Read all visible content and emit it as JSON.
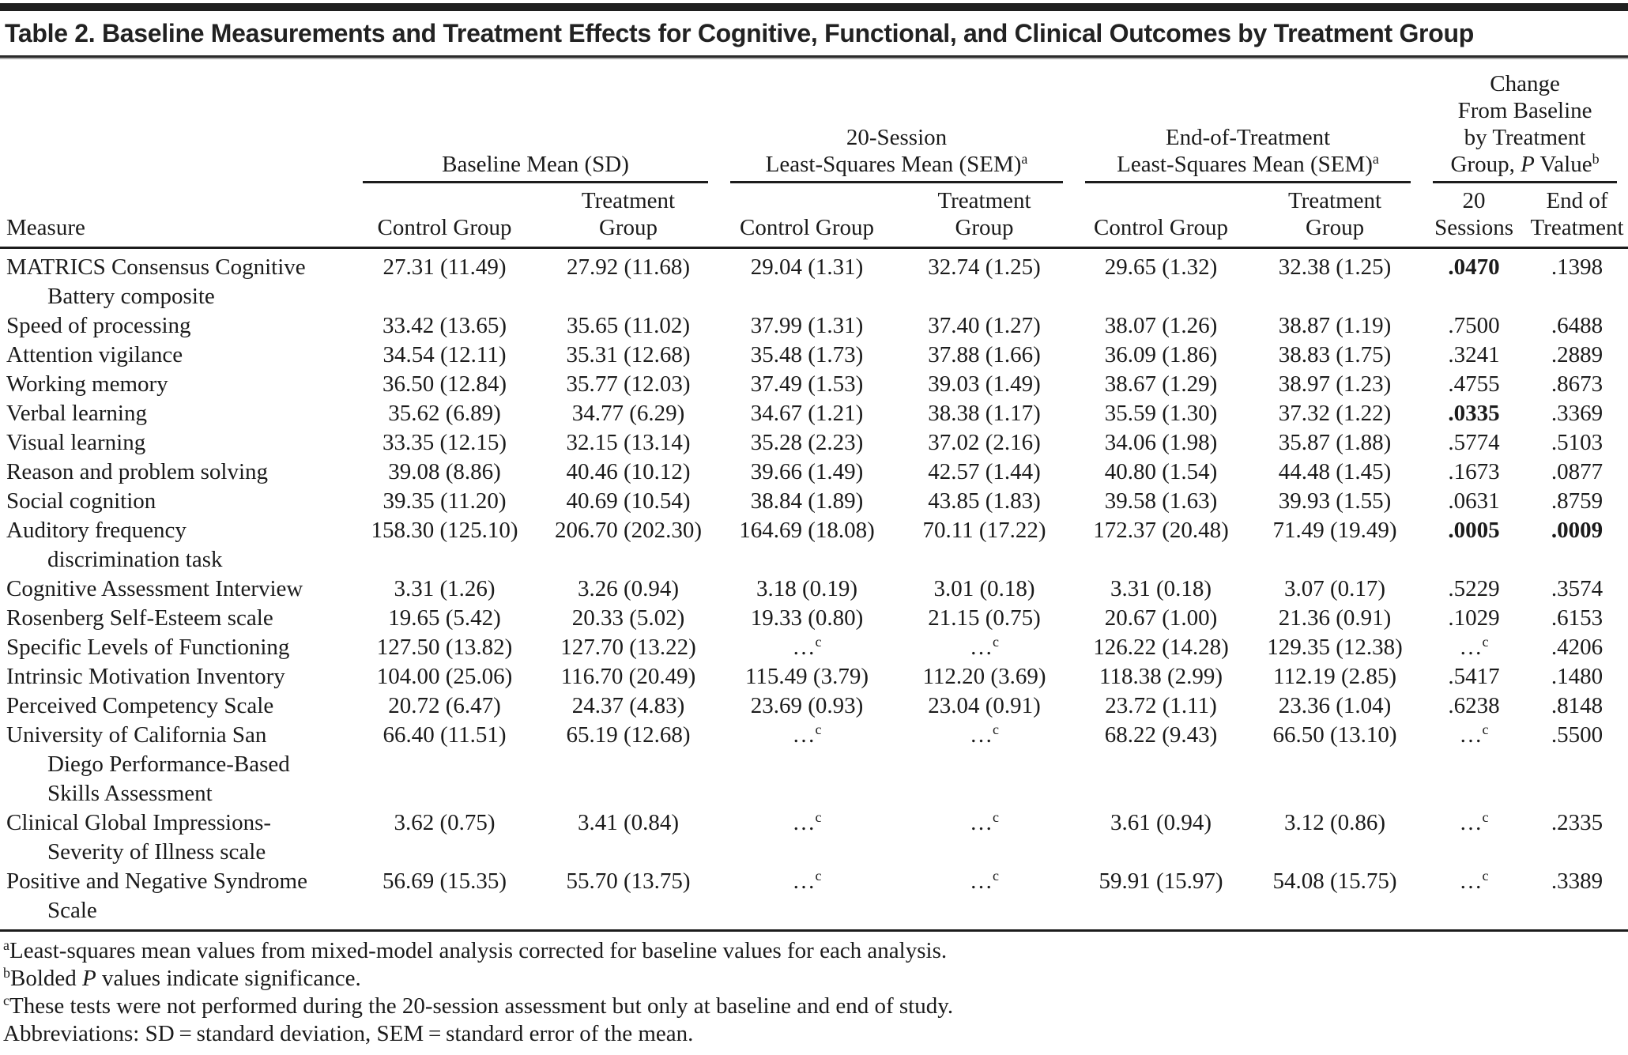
{
  "title": "Table 2. Baseline Measurements and Treatment Effects for Cognitive, Functional, and Clinical Outcomes by Treatment Group",
  "header": {
    "measure_label": "Measure",
    "groups": [
      {
        "label": "Baseline Mean (SD)",
        "sup": ""
      },
      {
        "label": "20-Session\nLeast-Squares Mean (SEM)",
        "sup": "a"
      },
      {
        "label": "End-of-Treatment\nLeast-Squares Mean (SEM)",
        "sup": "a"
      },
      {
        "label": "Change\nFrom Baseline\nby Treatment\nGroup, P Value",
        "sup": "b"
      }
    ],
    "subheaders": [
      "Control Group",
      "Treatment\nGroup",
      "Control Group",
      "Treatment\nGroup",
      "Control Group",
      "Treatment\nGroup",
      "20\nSessions",
      "End of\nTreatment"
    ]
  },
  "rows": [
    {
      "measure": "MATRICS Consensus Cognitive\nBattery composite",
      "values": [
        "27.31 (11.49)",
        "27.92 (11.68)",
        "29.04 (1.31)",
        "32.74 (1.25)",
        "29.65 (1.32)",
        "32.38 (1.25)",
        "**.0470**",
        ".1398"
      ]
    },
    {
      "measure": "Speed of processing",
      "values": [
        "33.42 (13.65)",
        "35.65 (11.02)",
        "37.99 (1.31)",
        "37.40 (1.27)",
        "38.07 (1.26)",
        "38.87 (1.19)",
        ".7500",
        ".6488"
      ]
    },
    {
      "measure": "Attention vigilance",
      "values": [
        "34.54 (12.11)",
        "35.31 (12.68)",
        "35.48 (1.73)",
        "37.88 (1.66)",
        "36.09 (1.86)",
        "38.83 (1.75)",
        ".3241",
        ".2889"
      ]
    },
    {
      "measure": "Working memory",
      "values": [
        "36.50 (12.84)",
        "35.77 (12.03)",
        "37.49 (1.53)",
        "39.03 (1.49)",
        "38.67 (1.29)",
        "38.97 (1.23)",
        ".4755",
        ".8673"
      ]
    },
    {
      "measure": "Verbal learning",
      "values": [
        "35.62 (6.89)",
        "34.77 (6.29)",
        "34.67 (1.21)",
        "38.38 (1.17)",
        "35.59 (1.30)",
        "37.32 (1.22)",
        "**.0335**",
        ".3369"
      ]
    },
    {
      "measure": "Visual learning",
      "values": [
        "33.35 (12.15)",
        "32.15 (13.14)",
        "35.28 (2.23)",
        "37.02 (2.16)",
        "34.06 (1.98)",
        "35.87 (1.88)",
        ".5774",
        ".5103"
      ]
    },
    {
      "measure": "Reason and problem solving",
      "values": [
        "39.08 (8.86)",
        "40.46 (10.12)",
        "39.66 (1.49)",
        "42.57 (1.44)",
        "40.80 (1.54)",
        "44.48 (1.45)",
        ".1673",
        ".0877"
      ]
    },
    {
      "measure": "Social cognition",
      "values": [
        "39.35 (11.20)",
        "40.69 (10.54)",
        "38.84 (1.89)",
        "43.85 (1.83)",
        "39.58 (1.63)",
        "39.93 (1.55)",
        ".0631",
        ".8759"
      ]
    },
    {
      "measure": "Auditory frequency\ndiscrimination task",
      "values": [
        "158.30 (125.10)",
        "206.70 (202.30)",
        "164.69 (18.08)",
        "70.11 (17.22)",
        "172.37 (20.48)",
        "71.49 (19.49)",
        "**.0005**",
        "**.0009**"
      ]
    },
    {
      "measure": "Cognitive Assessment Interview",
      "values": [
        "3.31 (1.26)",
        "3.26 (0.94)",
        "3.18 (0.19)",
        "3.01 (0.18)",
        "3.31 (0.18)",
        "3.07 (0.17)",
        ".5229",
        ".3574"
      ]
    },
    {
      "measure": "Rosenberg Self-Esteem scale",
      "values": [
        "19.65 (5.42)",
        "20.33 (5.02)",
        "19.33 (0.80)",
        "21.15 (0.75)",
        "20.67 (1.00)",
        "21.36 (0.91)",
        ".1029",
        ".6153"
      ]
    },
    {
      "measure": "Specific Levels of Functioning",
      "values": [
        "127.50 (13.82)",
        "127.70 (13.22)",
        "…^c",
        "…^c",
        "126.22 (14.28)",
        "129.35 (12.38)",
        "…^c",
        ".4206"
      ]
    },
    {
      "measure": "Intrinsic Motivation Inventory",
      "values": [
        "104.00 (25.06)",
        "116.70 (20.49)",
        "115.49 (3.79)",
        "112.20 (3.69)",
        "118.38 (2.99)",
        "112.19 (2.85)",
        ".5417",
        ".1480"
      ]
    },
    {
      "measure": "Perceived Competency Scale",
      "values": [
        "20.72 (6.47)",
        "24.37 (4.83)",
        "23.69 (0.93)",
        "23.04 (0.91)",
        "23.72 (1.11)",
        "23.36 (1.04)",
        ".6238",
        ".8148"
      ]
    },
    {
      "measure": "University of California San\nDiego Performance-Based\nSkills Assessment",
      "values": [
        "66.40 (11.51)",
        "65.19 (12.68)",
        "…^c",
        "…^c",
        "68.22 (9.43)",
        "66.50 (13.10)",
        "…^c",
        ".5500"
      ]
    },
    {
      "measure": "Clinical Global Impressions-\nSeverity of Illness scale",
      "values": [
        "3.62 (0.75)",
        "3.41 (0.84)",
        "…^c",
        "…^c",
        "3.61 (0.94)",
        "3.12 (0.86)",
        "…^c",
        ".2335"
      ]
    },
    {
      "measure": "Positive and Negative Syndrome\nScale",
      "values": [
        "56.69 (15.35)",
        "55.70 (13.75)",
        "…^c",
        "…^c",
        "59.91 (15.97)",
        "54.08 (15.75)",
        "…^c",
        ".3389"
      ]
    }
  ],
  "footnotes": [
    {
      "sup": "a",
      "text": "Least-squares mean values from mixed-model analysis corrected for baseline values for each analysis."
    },
    {
      "sup": "b",
      "text": "Bolded P values indicate significance."
    },
    {
      "sup": "c",
      "text": "These tests were not performed during the 20-session assessment but only at baseline and end of study."
    },
    {
      "sup": "",
      "text": "Abbreviations: SD = standard deviation, SEM = standard error of the mean."
    }
  ]
}
